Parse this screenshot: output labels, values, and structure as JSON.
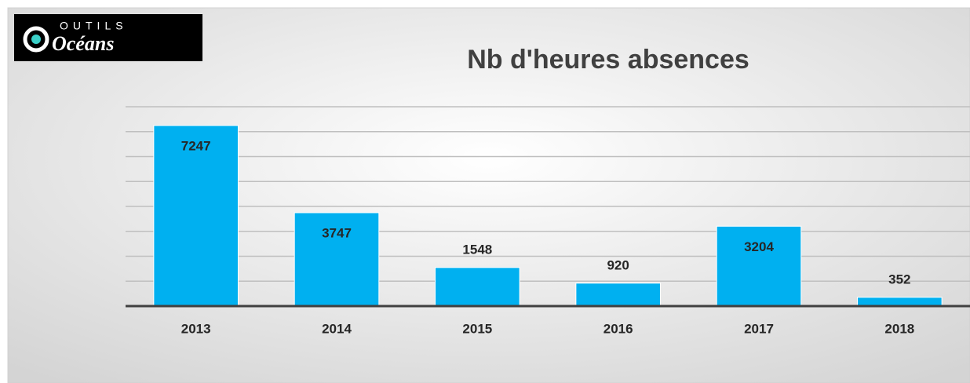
{
  "logo": {
    "top": "OUTILS",
    "bottom": "Océans"
  },
  "chart_data": {
    "type": "bar",
    "title": "Nb d'heures absences",
    "categories": [
      "2013",
      "2014",
      "2015",
      "2016",
      "2017",
      "2018"
    ],
    "values": [
      7247,
      3747,
      1548,
      920,
      3204,
      352
    ],
    "color": "#00b0f0",
    "ylim": [
      0,
      8000
    ],
    "yticks": [
      0,
      1000,
      2000,
      3000,
      4000,
      5000,
      6000,
      7000,
      8000
    ],
    "grid": true
  }
}
